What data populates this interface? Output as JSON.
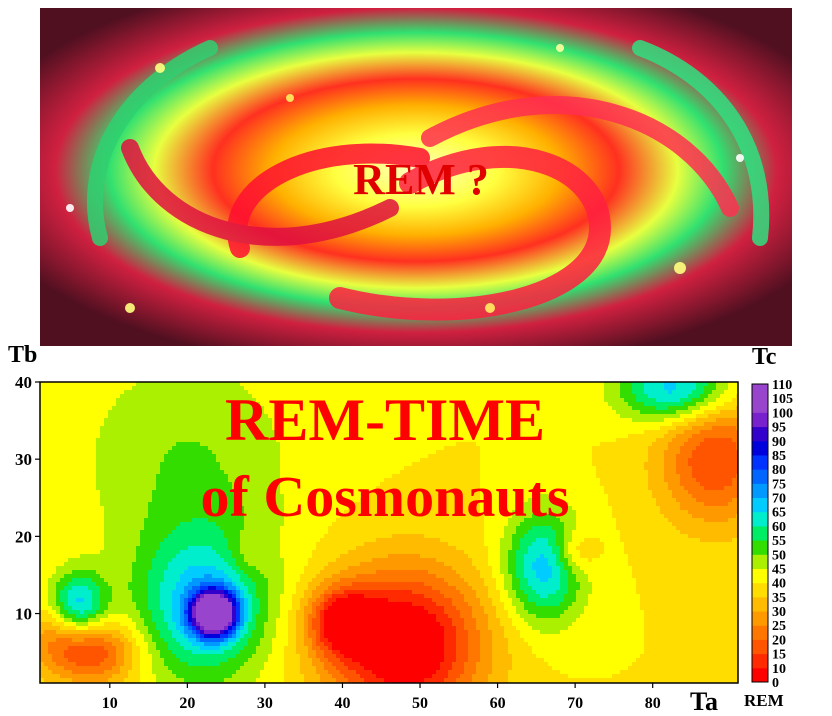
{
  "galaxy": {
    "caption": "REM ?"
  },
  "chart_data": {
    "type": "heatmap",
    "title_line1": "REM-TIME",
    "title_line2": "of Cosmonauts",
    "xlabel": "Ta",
    "ylabel": "Tb",
    "colorbar_label": "Tc",
    "colorbar_unit": "REM",
    "xlim": [
      1,
      91
    ],
    "ylim": [
      1,
      40
    ],
    "x_ticks": [
      10,
      20,
      30,
      40,
      50,
      60,
      70,
      80
    ],
    "y_ticks": [
      10,
      20,
      30,
      40
    ],
    "colorbar_ticks": [
      0,
      10,
      15,
      20,
      25,
      30,
      35,
      40,
      45,
      50,
      55,
      60,
      65,
      70,
      75,
      80,
      85,
      90,
      95,
      100,
      105,
      110
    ],
    "background_value": 40,
    "features": [
      {
        "x": 8,
        "y": 5,
        "value": 15,
        "sx": 4,
        "sy": 3
      },
      {
        "x": 3,
        "y": 7,
        "value": 30,
        "sx": 3,
        "sy": 3
      },
      {
        "x": 6,
        "y": 11,
        "value": 68,
        "sx": 2.5,
        "sy": 3
      },
      {
        "x": 22,
        "y": 11,
        "value": 68,
        "sx": 6,
        "sy": 7
      },
      {
        "x": 23.5,
        "y": 10,
        "value": 110,
        "sx": 2,
        "sy": 2
      },
      {
        "x": 20,
        "y": 30,
        "value": 50,
        "sx": 10,
        "sy": 10
      },
      {
        "x": 28,
        "y": 18,
        "value": 33,
        "sx": 2,
        "sy": 2
      },
      {
        "x": 40,
        "y": 9,
        "value": 12,
        "sx": 3,
        "sy": 3
      },
      {
        "x": 48,
        "y": 6,
        "value": 0,
        "sx": 7,
        "sy": 7
      },
      {
        "x": 66,
        "y": 16,
        "value": 68,
        "sx": 3.5,
        "sy": 5
      },
      {
        "x": 70,
        "y": 18,
        "value": 28,
        "sx": 2,
        "sy": 2
      },
      {
        "x": 88,
        "y": 30,
        "value": 15,
        "sx": 5,
        "sy": 6
      },
      {
        "x": 83,
        "y": 39,
        "value": 70,
        "sx": 5,
        "sy": 3
      }
    ],
    "colors": [
      "#ff0000",
      "#ff2a00",
      "#ff5500",
      "#ff7700",
      "#ff9900",
      "#ffbb00",
      "#ffdd00",
      "#ffff00",
      "#aaf000",
      "#33dd00",
      "#00ee66",
      "#00eecc",
      "#00ccff",
      "#0099ff",
      "#0066ff",
      "#0033ff",
      "#0000dd",
      "#3300cc",
      "#7722cc",
      "#9944cc"
    ]
  }
}
